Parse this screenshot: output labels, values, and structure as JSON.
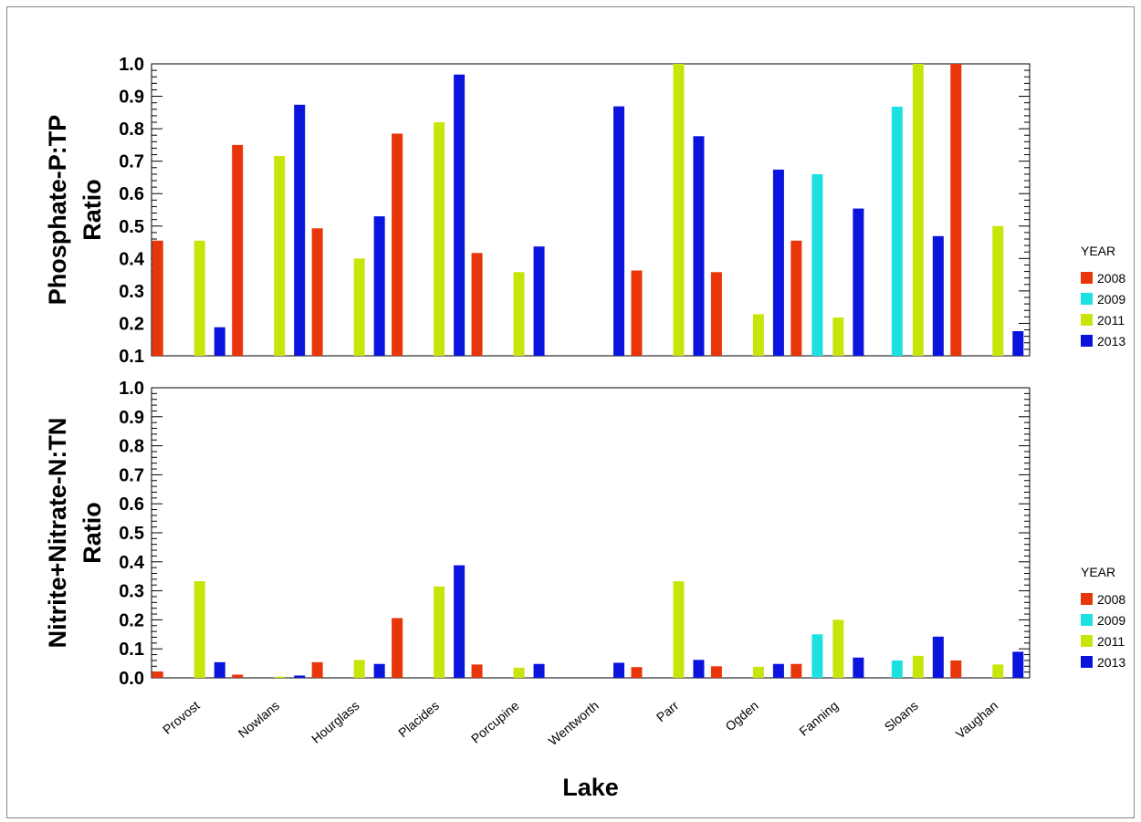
{
  "chart_data": [
    {
      "type": "bar",
      "panel": "top",
      "ylabel": [
        "Phosphate-P:TP",
        "Ratio"
      ],
      "ylim": [
        0.1,
        1.0
      ],
      "yticks": [
        0.1,
        0.2,
        0.3,
        0.4,
        0.5,
        0.6,
        0.7,
        0.8,
        0.9,
        1.0
      ],
      "ytick_labels": [
        "0.1",
        "0.2",
        "0.3",
        "0.4",
        "0.5",
        "0.6",
        "0.7",
        "0.8",
        "0.9",
        "1.0"
      ],
      "categories": [
        "Provost",
        "Nowlans",
        "Hourglass",
        "Placides",
        "Porcupine",
        "Wentworth",
        "Parr",
        "Ogden",
        "Fanning",
        "Sloans",
        "Vaughan"
      ],
      "legend_title": "YEAR",
      "legend_position": "right",
      "series": [
        {
          "name": "2008",
          "color": "#e8360a",
          "values": [
            0.455,
            0.75,
            0.493,
            0.785,
            0.417,
            null,
            0.363,
            0.358,
            0.455,
            null,
            1.0
          ]
        },
        {
          "name": "2009",
          "color": "#1ee0e0",
          "values": [
            null,
            null,
            null,
            null,
            null,
            null,
            null,
            null,
            0.66,
            0.868,
            null
          ]
        },
        {
          "name": "2011",
          "color": "#c8e40a",
          "values": [
            0.455,
            0.716,
            0.4,
            0.82,
            0.358,
            null,
            1.0,
            0.228,
            0.218,
            1.0,
            0.5
          ]
        },
        {
          "name": "2013",
          "color": "#0a14dc",
          "values": [
            0.188,
            0.874,
            0.53,
            0.967,
            0.437,
            0.869,
            0.777,
            0.674,
            0.554,
            0.469,
            0.176
          ]
        }
      ]
    },
    {
      "type": "bar",
      "panel": "bottom",
      "ylabel": [
        "Nitrite+Nitrate-N:TN",
        "Ratio"
      ],
      "xlabel": "Lake",
      "ylim": [
        0.0,
        1.0
      ],
      "yticks": [
        0.0,
        0.1,
        0.2,
        0.3,
        0.4,
        0.5,
        0.6,
        0.7,
        0.8,
        0.9,
        1.0
      ],
      "ytick_labels": [
        "0.0",
        "0.1",
        "0.2",
        "0.3",
        "0.4",
        "0.5",
        "0.6",
        "0.7",
        "0.8",
        "0.9",
        "1.0"
      ],
      "categories": [
        "Provost",
        "Nowlans",
        "Hourglass",
        "Placides",
        "Porcupine",
        "Wentworth",
        "Parr",
        "Ogden",
        "Fanning",
        "Sloans",
        "Vaughan"
      ],
      "legend_title": "YEAR",
      "legend_position": "right",
      "series": [
        {
          "name": "2008",
          "color": "#e8360a",
          "values": [
            0.022,
            0.011,
            0.054,
            0.206,
            0.046,
            null,
            0.037,
            0.04,
            0.048,
            null,
            0.06
          ]
        },
        {
          "name": "2009",
          "color": "#1ee0e0",
          "values": [
            null,
            null,
            null,
            null,
            null,
            null,
            null,
            null,
            0.15,
            0.06,
            null
          ]
        },
        {
          "name": "2011",
          "color": "#c8e40a",
          "values": [
            0.333,
            0.004,
            0.062,
            0.315,
            0.035,
            null,
            0.333,
            0.038,
            0.2,
            0.076,
            0.046
          ]
        },
        {
          "name": "2013",
          "color": "#0a14dc",
          "values": [
            0.054,
            0.008,
            0.048,
            0.388,
            0.048,
            0.052,
            0.062,
            0.048,
            0.07,
            0.142,
            0.09
          ]
        }
      ]
    }
  ]
}
